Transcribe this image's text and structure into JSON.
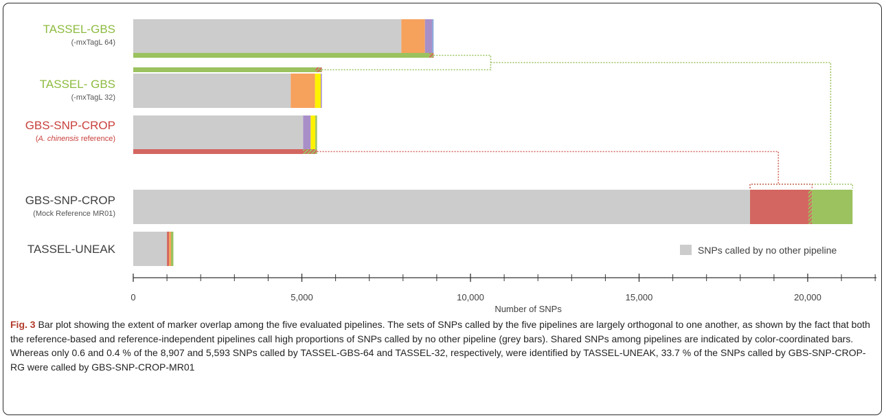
{
  "colors": {
    "grey": "#cccccc",
    "orange": "#f6a15c",
    "purple": "#a98fc8",
    "blue": "#8eaadb",
    "yellow": "#fff200",
    "green": "#9bc25f",
    "red": "#d36660",
    "green_label": "#8dbb3f",
    "red_label": "#c8403c",
    "dark_label": "#404040",
    "hatch_a": "#9bc25f",
    "hatch_b": "#d36660"
  },
  "chart_data": {
    "type": "bar",
    "orientation": "horizontal",
    "stacked": true,
    "xlabel": "Number of SNPs",
    "xlim": [
      0,
      22000
    ],
    "xticks": [
      0,
      5000,
      10000,
      15000,
      20000
    ],
    "xtick_labels": [
      "0",
      "5,000",
      "10,000",
      "15,000",
      "20,000"
    ],
    "minor_tick_step": 1000,
    "grid": false,
    "legend": {
      "position": "bottom-right",
      "entries": [
        {
          "label": "SNPs called by no other pipeline",
          "color": "grey"
        }
      ]
    },
    "pipelines": [
      {
        "name": "TASSEL-GBS",
        "subtitle": "(-mxTagL 64)",
        "label_color": "green_label",
        "rows": [
          {
            "slot": "main",
            "segments": [
              {
                "start": 0,
                "end": 7950,
                "color": "grey"
              },
              {
                "start": 7950,
                "end": 8650,
                "color": "orange"
              },
              {
                "start": 8650,
                "end": 8860,
                "color": "purple"
              },
              {
                "start": 8860,
                "end": 8907,
                "color": "blue"
              }
            ]
          },
          {
            "slot": "thin-below",
            "segments": [
              {
                "start": 0,
                "end": 8780,
                "color": "green"
              },
              {
                "start": 8780,
                "end": 8907,
                "color": "hatch"
              }
            ]
          }
        ]
      },
      {
        "name": "TASSEL- GBS",
        "subtitle": "(-mxTagL 32)",
        "label_color": "green_label",
        "rows": [
          {
            "slot": "thin-above",
            "segments": [
              {
                "start": 0,
                "end": 5400,
                "color": "green"
              },
              {
                "start": 5400,
                "end": 5593,
                "color": "hatch"
              }
            ]
          },
          {
            "slot": "main",
            "segments": [
              {
                "start": 0,
                "end": 4670,
                "color": "grey"
              },
              {
                "start": 4670,
                "end": 5390,
                "color": "orange"
              },
              {
                "start": 5390,
                "end": 5560,
                "color": "yellow"
              },
              {
                "start": 5560,
                "end": 5593,
                "color": "purple"
              }
            ]
          }
        ]
      },
      {
        "name": "GBS-SNP-CROP",
        "subtitle_italic": "A. chinensis",
        "subtitle_rest": " reference",
        "label_color": "red_label",
        "rows": [
          {
            "slot": "main",
            "segments": [
              {
                "start": 0,
                "end": 5040,
                "color": "grey"
              },
              {
                "start": 5040,
                "end": 5260,
                "color": "purple"
              },
              {
                "start": 5260,
                "end": 5400,
                "color": "yellow"
              },
              {
                "start": 5400,
                "end": 5450,
                "color": "green"
              }
            ]
          },
          {
            "slot": "thin-below",
            "segments": [
              {
                "start": 0,
                "end": 5040,
                "color": "red"
              },
              {
                "start": 5040,
                "end": 5450,
                "color": "hatch"
              }
            ]
          }
        ]
      },
      {
        "name": "GBS-SNP-CROP",
        "subtitle": "(Mock Reference MR01)",
        "label_color": "dark_label",
        "rows": [
          {
            "slot": "main",
            "segments": [
              {
                "start": 0,
                "end": 18290,
                "color": "grey"
              },
              {
                "start": 18290,
                "end": 20020,
                "color": "red"
              },
              {
                "start": 20020,
                "end": 20130,
                "color": "hatch"
              },
              {
                "start": 20130,
                "end": 21330,
                "color": "green"
              }
            ]
          }
        ]
      },
      {
        "name": "TASSEL-UNEAK",
        "label_color": "dark_label",
        "rows": [
          {
            "slot": "main",
            "segments": [
              {
                "start": 0,
                "end": 1000,
                "color": "grey"
              },
              {
                "start": 1000,
                "end": 1060,
                "color": "red"
              },
              {
                "start": 1060,
                "end": 1120,
                "color": "orange"
              },
              {
                "start": 1120,
                "end": 1190,
                "color": "green"
              }
            ]
          }
        ]
      }
    ],
    "connectors": [
      {
        "color": "green",
        "from_pipeline": 0,
        "bridge_to": 1,
        "at_x": 10600,
        "to_pipeline": 3,
        "target_start": 18290,
        "target_end": 21330,
        "branch_x": 20680
      },
      {
        "color": "red",
        "from_pipeline": 2,
        "to_pipeline": 3,
        "target_start": 18290,
        "target_end": 20130,
        "branch_x": 19130
      }
    ]
  },
  "caption": {
    "label": "Fig. 3",
    "text": " Bar plot showing the extent of marker overlap among the five evaluated pipelines. The sets of SNPs called by the five pipelines are largely orthogonal to one another, as shown by the fact that both the reference-based and reference-independent pipelines call high proportions of SNPs called by no other pipeline (grey bars). Shared SNPs among pipelines are indicated by color-coordinated bars. Whereas only 0.6 and 0.4 % of the 8,907 and 5,593 SNPs called by TASSEL-GBS-64 and TASSEL-32, respectively, were identified by TASSEL-UNEAK, 33.7 % of the SNPs called by GBS-SNP-CROP-RG were called by GBS-SNP-CROP-MR01"
  }
}
